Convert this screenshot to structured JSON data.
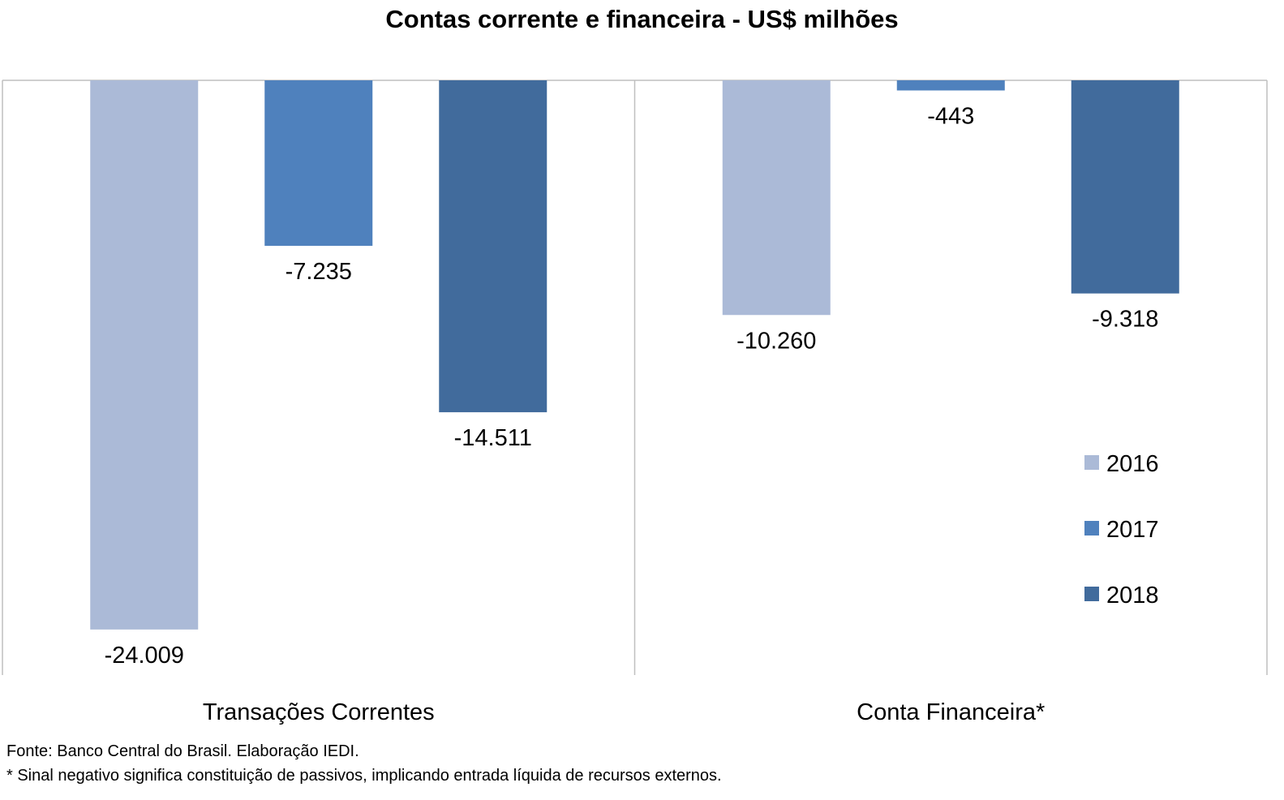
{
  "chart_data": {
    "type": "bar",
    "title": "Contas corrente e financeira - US$ milhões",
    "categories": [
      "Transações Correntes",
      "Conta Financeira*"
    ],
    "series": [
      {
        "name": "2016",
        "color": "#abbad7",
        "values": [
          -24009,
          -10260
        ],
        "labels": [
          "-24.009",
          "-10.260"
        ]
      },
      {
        "name": "2017",
        "color": "#4f81bd",
        "values": [
          -7235,
          -443
        ],
        "labels": [
          "-7.235",
          "-443"
        ]
      },
      {
        "name": "2018",
        "color": "#416b9c",
        "values": [
          -14511,
          -9318
        ],
        "labels": [
          "-14.511",
          "-9.318"
        ]
      }
    ],
    "ylim": [
      -26000,
      0
    ],
    "xlabel": "",
    "ylabel": "",
    "grid": false,
    "legend_position": "right"
  },
  "footnotes": {
    "source": "Fonte: Banco Central do Brasil. Elaboração IEDI.",
    "sign_note": "* Sinal negativo significa constituição de passivos, implicando entrada líquida de recursos externos."
  }
}
